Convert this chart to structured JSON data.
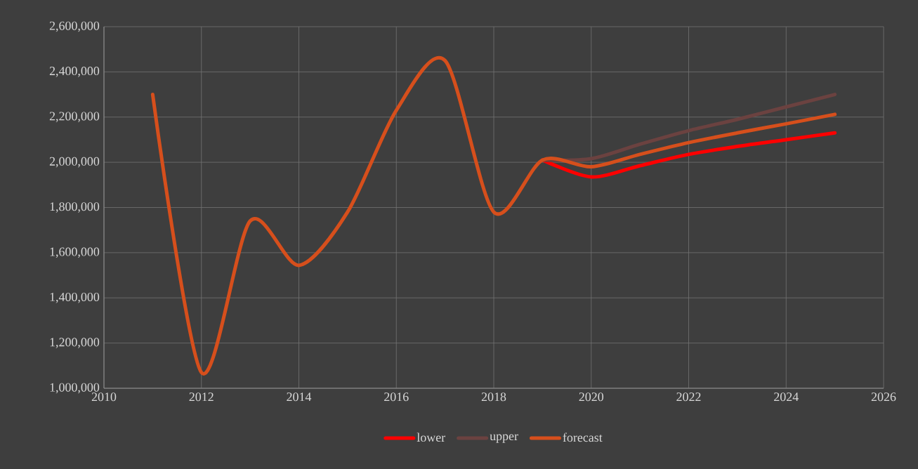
{
  "chart_data": {
    "type": "line",
    "x": [
      2011,
      2012,
      2013,
      2014,
      2015,
      2016,
      2017,
      2018,
      2019,
      2020,
      2021,
      2022,
      2023,
      2024,
      2025
    ],
    "series": [
      {
        "name": "lower",
        "color": "#ff0000",
        "values": [
          null,
          null,
          null,
          null,
          null,
          null,
          null,
          null,
          2010000,
          1935000,
          1985000,
          2035000,
          2070000,
          2100000,
          2130000
        ]
      },
      {
        "name": "upper",
        "color": "#6b4240",
        "values": [
          null,
          null,
          null,
          null,
          null,
          null,
          null,
          null,
          2010000,
          2016000,
          2080000,
          2140000,
          2190000,
          2245000,
          2300000
        ]
      },
      {
        "name": "forecast",
        "color": "#d64f1c",
        "values": [
          2300000,
          1070000,
          1740000,
          1544000,
          1780000,
          2230000,
          2450000,
          1780000,
          2010000,
          1980000,
          2035000,
          2087000,
          2130000,
          2170000,
          2212000
        ]
      }
    ],
    "xlim": [
      2010,
      2026
    ],
    "xticks": [
      2010,
      2012,
      2014,
      2016,
      2018,
      2020,
      2022,
      2024,
      2026
    ],
    "ylim": [
      1000000,
      2600000
    ],
    "yticks": [
      {
        "value": 1000000,
        "label": "1,000,000"
      },
      {
        "value": 1200000,
        "label": "1,200,000"
      },
      {
        "value": 1400000,
        "label": "1,400,000"
      },
      {
        "value": 1600000,
        "label": "1,600,000"
      },
      {
        "value": 1800000,
        "label": "1,800,000"
      },
      {
        "value": 2000000,
        "label": "2,000,000"
      },
      {
        "value": 2200000,
        "label": "2,200,000"
      },
      {
        "value": 2400000,
        "label": "2,400,000"
      },
      {
        "value": 2600000,
        "label": "2,600,000"
      }
    ],
    "grid": true,
    "legend": "bottom",
    "marker": "none",
    "line_style": "solid"
  }
}
